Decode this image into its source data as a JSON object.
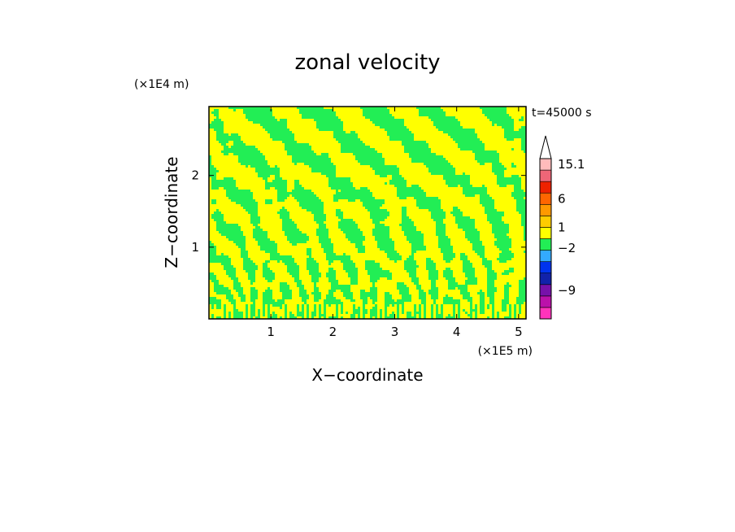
{
  "chart_data": {
    "type": "heatmap",
    "title": "zonal velocity",
    "xlabel": "X−coordinate",
    "ylabel": "Z−coordinate",
    "x_scale_label": "(×1E5 m)",
    "y_scale_label": "(×1E4 m)",
    "time_label": "t=45000 s",
    "xlim": [
      0,
      5.12
    ],
    "ylim": [
      0,
      2.96
    ],
    "x_ticks": [
      {
        "value": 1,
        "label": "1"
      },
      {
        "value": 2,
        "label": "2"
      },
      {
        "value": 3,
        "label": "3"
      },
      {
        "value": 4,
        "label": "4"
      },
      {
        "value": 5,
        "label": "5"
      }
    ],
    "y_ticks": [
      {
        "value": 1,
        "label": "1"
      },
      {
        "value": 2,
        "label": "2"
      }
    ],
    "fill_colors": {
      "positive": "#ffff00",
      "negative": "#22ee55"
    },
    "colorbar": {
      "levels": [
        {
          "color": "#ff33bb"
        },
        {
          "color": "#bb11aa"
        },
        {
          "color": "#7711aa"
        },
        {
          "color": "#1122aa"
        },
        {
          "color": "#0033ee"
        },
        {
          "color": "#33aaff"
        },
        {
          "color": "#22ee55"
        },
        {
          "color": "#ffff00"
        },
        {
          "color": "#ffcc00"
        },
        {
          "color": "#ff9900"
        },
        {
          "color": "#ff6600"
        },
        {
          "color": "#ee2200"
        },
        {
          "color": "#ee6677"
        },
        {
          "color": "#ffbbbb"
        }
      ],
      "tick_labels": [
        {
          "label": "15.1",
          "level_index": 13.5
        },
        {
          "label": "6",
          "level_index": 10.5
        },
        {
          "label": "1",
          "level_index": 8.0
        },
        {
          "label": "−2",
          "level_index": 6.2
        },
        {
          "label": "−9",
          "level_index": 2.5
        }
      ]
    }
  }
}
